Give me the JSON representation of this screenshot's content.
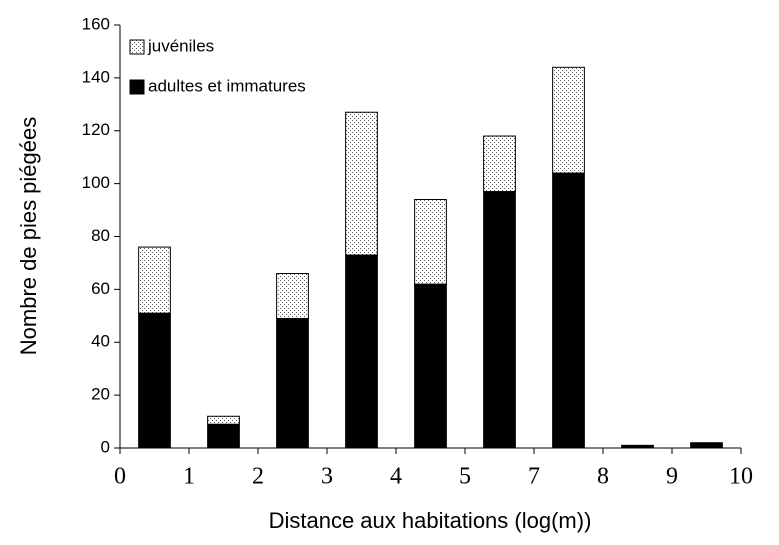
{
  "chart_data": {
    "type": "stacked_bar",
    "x_label": "Distance aux habitations (log(m))",
    "y_label": "Nombre de pies piégées",
    "xticks": [
      0,
      1,
      2,
      3,
      4,
      5,
      7,
      8,
      9,
      10
    ],
    "series": [
      {
        "name": "adultes et immatures",
        "color": "#000000",
        "values": [
          51,
          9,
          49,
          73,
          62,
          97,
          104,
          1,
          2
        ]
      },
      {
        "name": "juvéniles",
        "color": "#ffffff",
        "pattern": "dots",
        "values": [
          25,
          3,
          17,
          54,
          32,
          21,
          40,
          0,
          0
        ]
      }
    ],
    "ylim": [
      0,
      160
    ],
    "yticks": [
      0,
      20,
      40,
      60,
      80,
      100,
      120,
      140,
      160
    ],
    "legend": "upper left"
  }
}
